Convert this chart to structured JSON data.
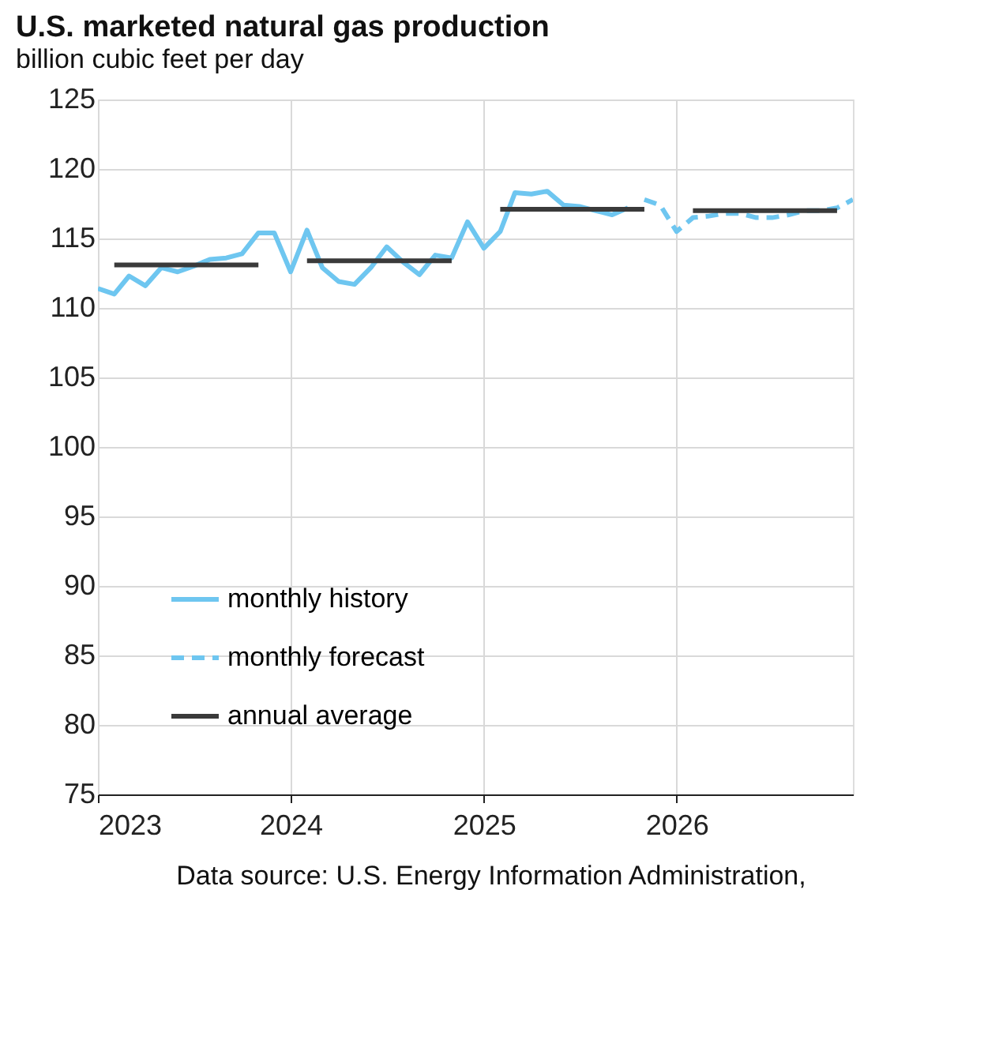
{
  "chart_data": {
    "type": "line",
    "title": "U.S. marketed natural gas production",
    "subtitle": "billion cubic feet per day",
    "series": [
      {
        "name": "monthly history",
        "color": "#6ec6f0",
        "line_style": "solid",
        "x": [
          "2023-01",
          "2023-02",
          "2023-03",
          "2023-04",
          "2023-05",
          "2023-06",
          "2023-07",
          "2023-08",
          "2023-09",
          "2023-10",
          "2023-11",
          "2023-12",
          "2024-01",
          "2024-02",
          "2024-03",
          "2024-04",
          "2024-05",
          "2024-06",
          "2024-07",
          "2024-08",
          "2024-09",
          "2024-10",
          "2024-11",
          "2024-12",
          "2025-01",
          "2025-02",
          "2025-03",
          "2025-04",
          "2025-05",
          "2025-06",
          "2025-07",
          "2025-08",
          "2025-09",
          "2025-10"
        ],
        "values": [
          111.4,
          111.0,
          112.3,
          111.6,
          112.9,
          112.6,
          113.0,
          113.5,
          113.6,
          113.9,
          115.4,
          115.4,
          112.6,
          115.6,
          112.9,
          111.9,
          111.7,
          112.9,
          114.4,
          113.3,
          112.4,
          113.8,
          113.6,
          116.2,
          114.3,
          115.5,
          118.3,
          118.2,
          118.4,
          117.4,
          117.3,
          117.0,
          116.7,
          117.2
        ]
      },
      {
        "name": "monthly forecast",
        "color": "#6ec6f0",
        "line_style": "dashed",
        "x": [
          "2025-11",
          "2025-12",
          "2026-01",
          "2026-02",
          "2026-03",
          "2026-04",
          "2026-05",
          "2026-06",
          "2026-07",
          "2026-08",
          "2026-09",
          "2026-10",
          "2026-11",
          "2026-12"
        ],
        "values": [
          117.8,
          117.4,
          115.5,
          116.5,
          116.6,
          116.8,
          116.8,
          116.5,
          116.5,
          116.7,
          117.0,
          117.0,
          117.2,
          117.8
        ]
      },
      {
        "name": "annual average",
        "color": "#3a3a3a",
        "line_style": "solid",
        "x": [
          "2023-02",
          "2023-11",
          "2023-12",
          "2024-02",
          "2024-11",
          "2024-12",
          "2025-02",
          "2025-11",
          "2025-12",
          "2026-02",
          "2026-11"
        ],
        "values": [
          113.1,
          113.1,
          null,
          113.4,
          113.4,
          null,
          117.1,
          117.1,
          null,
          117.0,
          117.0
        ]
      }
    ],
    "xlim": [
      "2023-01",
      "2026-12"
    ],
    "xticks": [
      {
        "value": "2023-01",
        "label": "2023"
      },
      {
        "value": "2024-01",
        "label": "2024"
      },
      {
        "value": "2025-01",
        "label": "2025"
      },
      {
        "value": "2026-01",
        "label": "2026"
      }
    ],
    "ylim": [
      75,
      125
    ],
    "yticks": [
      75,
      80,
      85,
      90,
      95,
      100,
      105,
      110,
      115,
      120,
      125
    ],
    "grid": true,
    "legend": "bottom left",
    "marker": "none",
    "annotations": [
      "Data source: U.S. Energy Information Administration,"
    ]
  }
}
